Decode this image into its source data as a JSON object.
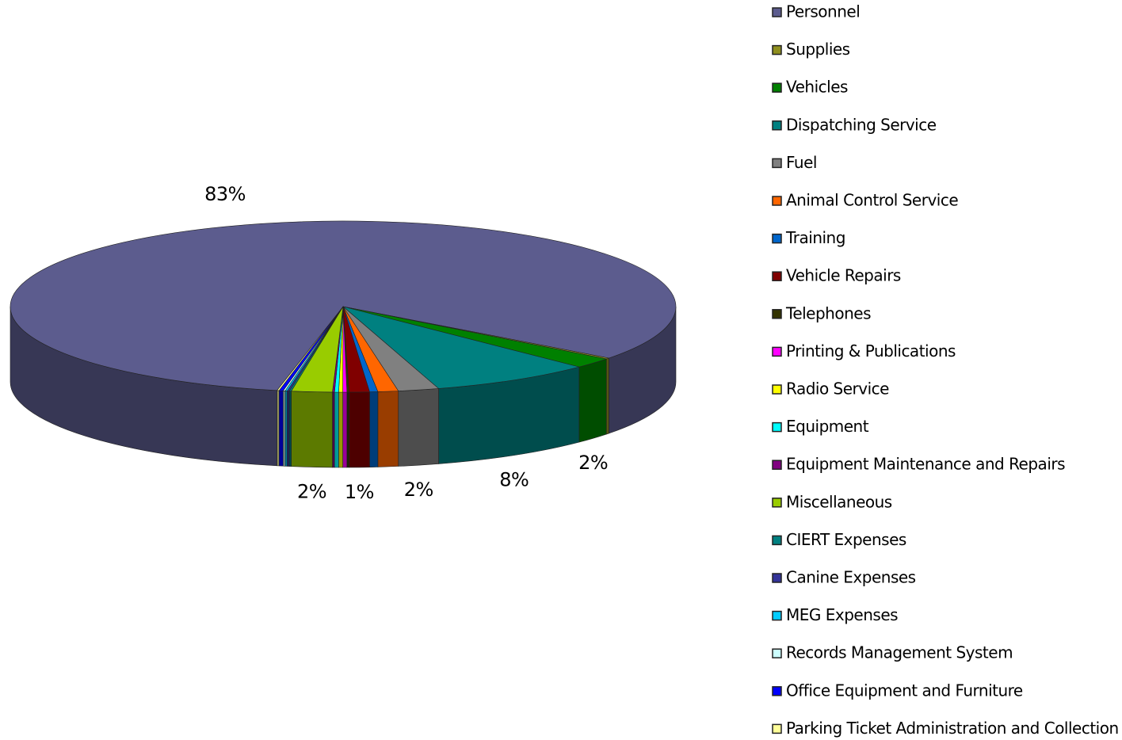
{
  "chart_data": {
    "type": "pie3d",
    "categories": [
      "Personnel",
      "Supplies",
      "Vehicles",
      "Dispatching Service",
      "Fuel",
      "Animal Control Service",
      "Training",
      "Vehicle Repairs",
      "Telephones",
      "Printing & Publications",
      "Radio Service",
      "Equipment",
      "Equipment Maintenance and Repairs",
      "Miscellaneous",
      "CIERT Expenses",
      "Canine Expenses",
      "MEG Expenses",
      "Records Management System",
      "Office Equipment and Furniture",
      "Parking Ticket Administration and Collection"
    ],
    "values": [
      83,
      0.2,
      2,
      8,
      2,
      1,
      0.4,
      1,
      0.1,
      0.2,
      0.2,
      0.2,
      0.1,
      2,
      0.1,
      0.1,
      0.1,
      0.1,
      0.2,
      0.1
    ],
    "value_labels": [
      "83%",
      null,
      "2%",
      "8%",
      "2%",
      null,
      null,
      "1%",
      null,
      null,
      null,
      null,
      null,
      "2%",
      null,
      null,
      null,
      null,
      null,
      null
    ],
    "colors": [
      "#5c5c8e",
      "#8f8f1f",
      "#008000",
      "#008080",
      "#808080",
      "#ff6600",
      "#0066cc",
      "#800000",
      "#333300",
      "#ff00ff",
      "#ffff00",
      "#00ffff",
      "#800080",
      "#99cc00",
      "#008080",
      "#333399",
      "#00ccff",
      "#ccffff",
      "#0000ff",
      "#ffff99"
    ]
  }
}
